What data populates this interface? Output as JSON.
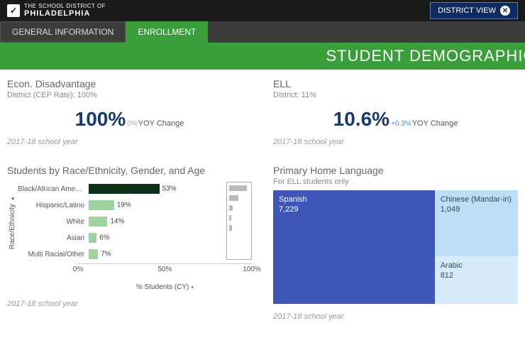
{
  "header": {
    "logo_top": "THE SCHOOL DISTRICT OF",
    "logo_main": "PHILADELPHIA",
    "district_view_label": "DISTRICT VIEW"
  },
  "tabs": {
    "general": "GENERAL INFORMATION",
    "enrollment": "ENROLLMENT"
  },
  "banner": {
    "title": "STUDENT DEMOGRAPHICS"
  },
  "econ": {
    "title": "Econ. Disadvantage",
    "sub": "District (CEP Rate): 100%",
    "value": "100%",
    "delta": "0%",
    "delta_positive": false,
    "yoy_label": "YOY Change",
    "year": "2017-18 school year"
  },
  "ell": {
    "title": "ELL",
    "sub": "District: 11%",
    "value": "10.6%",
    "delta": "+0.3%",
    "delta_positive": true,
    "yoy_label": "YOY Change",
    "year": "2017-18 school year"
  },
  "race_chart": {
    "title": "Students by Race/Ethnicity, Gender, and Age",
    "ylabel": "Race/Ethnicity",
    "xlabel": "% Students (CY)",
    "xticks": [
      "0%",
      "50%",
      "100%"
    ],
    "xtick_positions": [
      0,
      50,
      100
    ],
    "bars": [
      {
        "label": "Black/African Ameri...",
        "value": 53,
        "value_label": "53%",
        "color": "#0d3017"
      },
      {
        "label": "Hispanic/Latino",
        "value": 19,
        "value_label": "19%",
        "color": "#9ed29e"
      },
      {
        "label": "White",
        "value": 14,
        "value_label": "14%",
        "color": "#9ed29e"
      },
      {
        "label": "Asian",
        "value": 6,
        "value_label": "6%",
        "color": "#9ed29e"
      },
      {
        "label": "Multi Racial/Other",
        "value": 7,
        "value_label": "7%",
        "color": "#9ed29e"
      }
    ],
    "spark_widths": [
      90,
      45,
      18,
      10,
      14
    ],
    "year": "2017-18 school year"
  },
  "lang_chart": {
    "title": "Primary Home Language",
    "sub": "For ELL students only",
    "cells": {
      "spanish": {
        "label": "Spanish",
        "value": "7,229",
        "bg": "#3e56b5",
        "fg": "#ffffff"
      },
      "chinese": {
        "label": "Chinese (Mandar-in)",
        "value": "1,049",
        "bg": "#bcdff5",
        "fg": "#2b4a66"
      },
      "arabic": {
        "label": "Arabic",
        "value": "812",
        "bg": "#d7ecfa",
        "fg": "#2b4a66"
      }
    },
    "year": "2017-18 school year"
  }
}
